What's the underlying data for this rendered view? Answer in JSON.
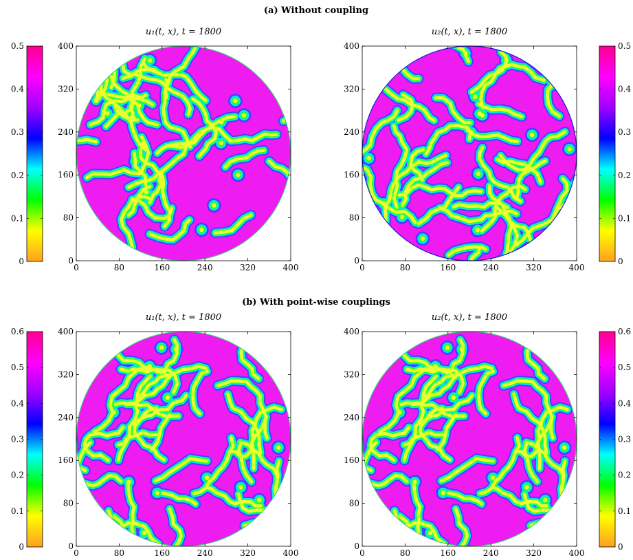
{
  "figure": {
    "section_a_title": "(a) Without coupling",
    "section_b_title": "(b) With point-wise couplings"
  },
  "colormap": {
    "stops": [
      "#ffa020",
      "#ffff00",
      "#00ff00",
      "#00ffff",
      "#0000ff",
      "#a000ff",
      "#ff00ff",
      "#ff0090"
    ]
  },
  "pattern_colors": {
    "stripe_core": "#e8ff30",
    "stripe_edge": "#00e6ff",
    "stripe_rim": "#4b3cff",
    "background": "#ee1cf0"
  },
  "chart_data": [
    {
      "type": "heatmap",
      "section": "a",
      "title": "u₁(t, x), t = 1800",
      "x_ticks": [
        "0",
        "80",
        "160",
        "240",
        "320",
        "400"
      ],
      "y_ticks": [
        "0",
        "80",
        "160",
        "240",
        "320",
        "400"
      ],
      "xlim": [
        0,
        400
      ],
      "ylim": [
        0,
        400
      ],
      "domain": "disc centered at (200, 200), radius 200",
      "colorbar": {
        "position": "left",
        "range": [
          0,
          0.5
        ],
        "ticks": [
          "0",
          "0.1",
          "0.2",
          "0.3",
          "0.4",
          "0.5"
        ]
      },
      "pattern_seed": 11,
      "rim_color": "#3ad07a"
    },
    {
      "type": "heatmap",
      "section": "a",
      "title": "u₂(t, x), t = 1800",
      "x_ticks": [
        "0",
        "80",
        "160",
        "240",
        "320",
        "400"
      ],
      "y_ticks": [
        "0",
        "80",
        "160",
        "240",
        "320",
        "400"
      ],
      "xlim": [
        0,
        400
      ],
      "ylim": [
        0,
        400
      ],
      "domain": "disc centered at (200, 200), radius 200",
      "colorbar": {
        "position": "right",
        "range": [
          0,
          0.5
        ],
        "ticks": [
          "0",
          "0.1",
          "0.2",
          "0.3",
          "0.4",
          "0.5"
        ]
      },
      "pattern_seed": 27,
      "rim_color": "#1a1ad8"
    },
    {
      "type": "heatmap",
      "section": "b",
      "title": "u₁(t, x), t = 1800",
      "x_ticks": [
        "0",
        "80",
        "160",
        "240",
        "320",
        "400"
      ],
      "y_ticks": [
        "0",
        "80",
        "160",
        "240",
        "320",
        "400"
      ],
      "xlim": [
        0,
        400
      ],
      "ylim": [
        0,
        400
      ],
      "domain": "disc centered at (200, 200), radius 200",
      "colorbar": {
        "position": "left",
        "range": [
          0,
          0.6
        ],
        "ticks": [
          "0",
          "0.1",
          "0.2",
          "0.3",
          "0.4",
          "0.5",
          "0.6"
        ]
      },
      "pattern_seed": 53,
      "rim_color": "#3ad07a"
    },
    {
      "type": "heatmap",
      "section": "b",
      "title": "u₂(t, x), t = 1800",
      "x_ticks": [
        "0",
        "80",
        "160",
        "240",
        "320",
        "400"
      ],
      "y_ticks": [
        "0",
        "80",
        "160",
        "240",
        "320",
        "400"
      ],
      "xlim": [
        0,
        400
      ],
      "ylim": [
        0,
        400
      ],
      "domain": "disc centered at (200, 200), radius 200",
      "colorbar": {
        "position": "right",
        "range": [
          0,
          0.6
        ],
        "ticks": [
          "0",
          "0.1",
          "0.2",
          "0.3",
          "0.4",
          "0.5",
          "0.6"
        ]
      },
      "pattern_seed": 53,
      "rim_color": "#3ad07a"
    }
  ]
}
